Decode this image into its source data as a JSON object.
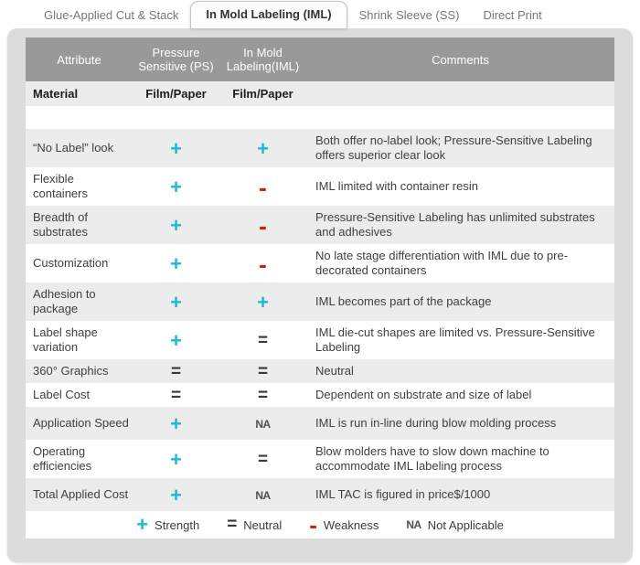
{
  "tabs": [
    {
      "label": "Glue-Applied Cut & Stack",
      "active": false
    },
    {
      "label": "In Mold Labeling (IML)",
      "active": true
    },
    {
      "label": "Shrink Sleeve (SS)",
      "active": false
    },
    {
      "label": "Direct Print",
      "active": false
    }
  ],
  "table": {
    "columns": [
      "Attribute",
      "Pressure Sensitive (PS)",
      "In Mold Labeling(IML)",
      "Comments"
    ],
    "material_row": {
      "attribute": "Material",
      "ps": "Film/Paper",
      "iml": "Film/Paper"
    },
    "rows": [
      {
        "attribute": "“No Label” look",
        "ps": "+",
        "iml": "+",
        "comment": "Both offer no-label look; Pressure-Sensitive Labeling offers superior clear look"
      },
      {
        "attribute": "Flexible containers",
        "ps": "+",
        "iml": "-",
        "comment": "IML limited with container resin"
      },
      {
        "attribute": "Breadth of substrates",
        "ps": "+",
        "iml": "-",
        "comment": "Pressure-Sensitive Labeling has unlimited substrates and adhesives"
      },
      {
        "attribute": "Customization",
        "ps": "+",
        "iml": "-",
        "comment": "No late stage differentiation with IML due to pre-decorated containers"
      },
      {
        "attribute": "Adhesion to package",
        "ps": "+",
        "iml": "+",
        "comment": "IML becomes part of the package"
      },
      {
        "attribute": "Label shape variation",
        "ps": "+",
        "iml": "=",
        "comment": "IML die-cut shapes are limited vs. Pressure-Sensitive Labeling"
      },
      {
        "attribute": "360° Graphics",
        "ps": "=",
        "iml": "=",
        "comment": "Neutral"
      },
      {
        "attribute": "Label Cost",
        "ps": "=",
        "iml": "=",
        "comment": "Dependent on substrate and size of label"
      },
      {
        "attribute": "Application Speed",
        "ps": "+",
        "iml": "NA",
        "comment": "IML is run in-line during blow molding process"
      },
      {
        "attribute": "Operating efficiencies",
        "ps": "+",
        "iml": "=",
        "comment": "Blow molders have to slow down machine to accommodate IML labeling process"
      },
      {
        "attribute": "Total Applied Cost",
        "ps": "+",
        "iml": "NA",
        "comment": "IML TAC is figured in price$/1000"
      }
    ]
  },
  "legend": {
    "items": [
      {
        "sym": "+",
        "label": "Strength"
      },
      {
        "sym": "=",
        "label": "Neutral"
      },
      {
        "sym": "-",
        "label": "Weakness"
      },
      {
        "sym": "NA",
        "label": "Not Applicable"
      }
    ]
  },
  "colors": {
    "strength_cyan": "#1db9d4",
    "weakness_red": "#cc2200",
    "neutral_dark": "#3a3a3a",
    "header_gray": "#999999",
    "row_gray": "#ececec",
    "panel_gray": "#dcdcdc"
  }
}
